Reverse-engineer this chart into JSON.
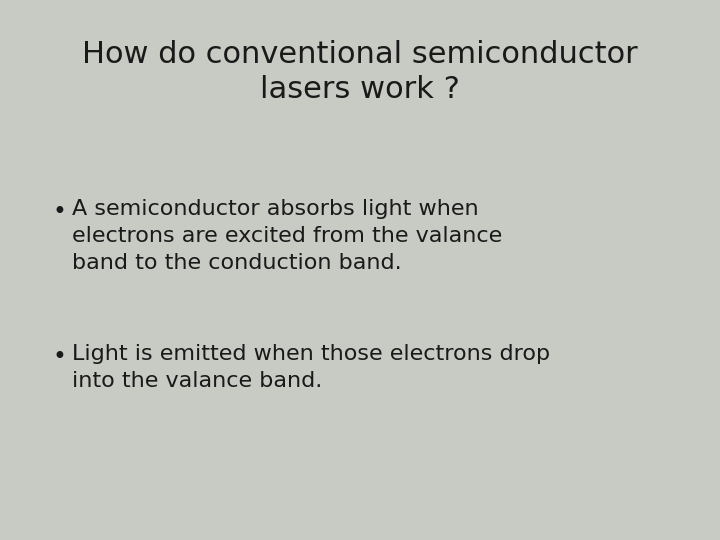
{
  "background_color": "#c8cac4",
  "title_line1": "How do conventional semiconductor",
  "title_line2": "lasers work ?",
  "title_fontsize": 22,
  "title_color": "#1a1a1a",
  "bullet1_line1": "A semiconductor absorbs light when",
  "bullet1_line2": "electrons are excited from the valance",
  "bullet1_line3": "band to the conduction band.",
  "bullet2_line1": "Light is emitted when those electrons drop",
  "bullet2_line2": "into the valance band.",
  "bullet_fontsize": 16,
  "bullet_color": "#1a1a1a",
  "bullet_symbol": "•",
  "title_font": "DejaVu Sans",
  "body_font": "DejaVu Sans"
}
